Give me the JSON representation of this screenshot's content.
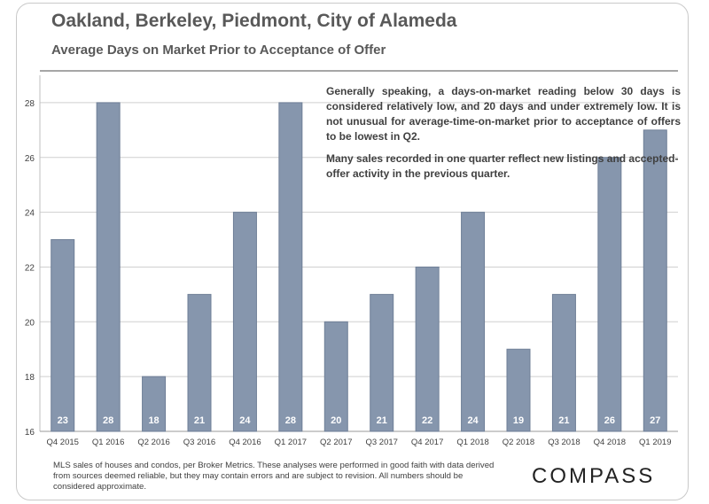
{
  "header": {
    "title": "Oakland, Berkeley, Piedmont, City of Alameda",
    "subtitle": "Average Days on Market Prior to Acceptance of Offer"
  },
  "notes": {
    "paragraph_1": "Generally speaking, a days-on-market reading below 30 days is considered relatively low, and 20 days and under extremely low. It is not unusual for average-time-on-market prior to acceptance of offers to be lowest in Q2.",
    "paragraph_2": "Many sales recorded in one quarter reflect new listings and accepted-offer activity in the previous quarter."
  },
  "footer": {
    "disclaimer": "MLS sales of houses and condos, per Broker Metrics. These analyses were performed in good faith with data derived from sources deemed reliable, but they may contain errors and are subject to revision. All numbers should be considered approximate.",
    "logo": "COMPASS"
  },
  "colors": {
    "bar": "#8696ad",
    "bar_outline": "#6f7f97",
    "grid": "#cfcfcf",
    "text": "#595959"
  },
  "chart_data": {
    "type": "bar",
    "title": "Oakland, Berkeley, Piedmont, City of Alameda",
    "subtitle": "Average Days on Market Prior to Acceptance of Offer",
    "categories": [
      "Q4 2015",
      "Q1 2016",
      "Q2 2016",
      "Q3 2016",
      "Q4 2016",
      "Q1 2017",
      "Q2 2017",
      "Q3 2017",
      "Q4 2017",
      "Q1 2018",
      "Q2 2018",
      "Q3 2018",
      "Q4 2018",
      "Q1 2019"
    ],
    "values": [
      23,
      28,
      18,
      21,
      24,
      28,
      20,
      21,
      22,
      24,
      19,
      21,
      26,
      27
    ],
    "data_labels": [
      "23",
      "28",
      "18",
      "21",
      "24",
      "28",
      "20",
      "21",
      "22",
      "24",
      "19",
      "21",
      "26",
      "27"
    ],
    "ylim": [
      16,
      29
    ],
    "yticks": [
      16,
      18,
      20,
      22,
      24,
      26,
      28
    ],
    "xlabel": "",
    "ylabel": "",
    "grid": true,
    "legend": "none"
  }
}
